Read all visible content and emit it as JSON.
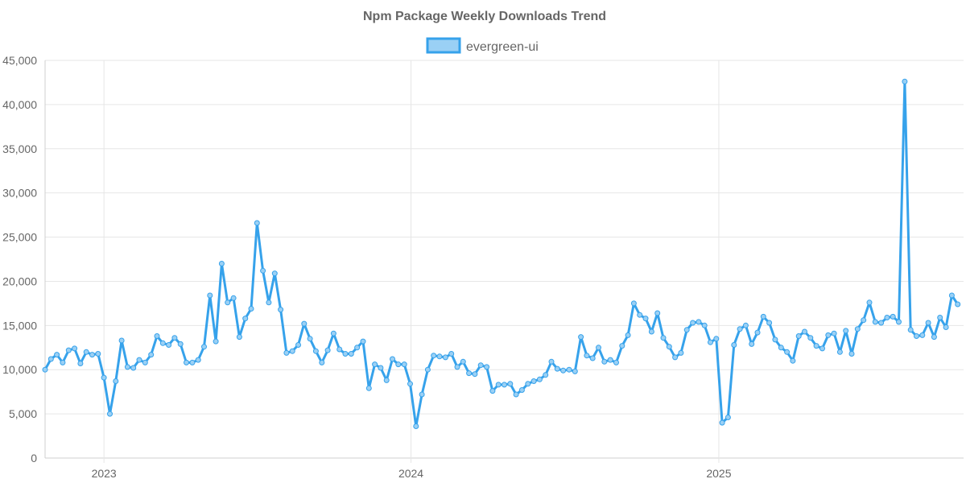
{
  "colors": {
    "line": "#36a2eb",
    "fill": "#9ad0f5",
    "grid": "#e6e6e6",
    "text": "#666666"
  },
  "chart_data": {
    "type": "line",
    "title": "Npm Package Weekly Downloads Trend",
    "xlabel": "",
    "ylabel": "",
    "ylim": [
      0,
      45000
    ],
    "y_ticks": [
      0,
      5000,
      10000,
      15000,
      20000,
      25000,
      30000,
      35000,
      40000,
      45000
    ],
    "y_tick_labels": [
      "0",
      "5,000",
      "10,000",
      "15,000",
      "20,000",
      "25,000",
      "30,000",
      "35,000",
      "40,000",
      "45,000"
    ],
    "x_range": [
      "2022-10-23",
      "2025-10-19"
    ],
    "x_ticks": [
      "2023-01-01",
      "2024-01-01",
      "2025-01-01"
    ],
    "x_tick_labels": [
      "2023",
      "2024",
      "2025"
    ],
    "grid": true,
    "legend": "top-center",
    "series": [
      {
        "name": "evergreen-ui",
        "start": "2022-10-23",
        "interval_days": 7,
        "values": [
          10000,
          11200,
          11700,
          10800,
          12200,
          12400,
          10700,
          12000,
          11700,
          11800,
          9100,
          5000,
          8700,
          13300,
          10300,
          10200,
          11100,
          10800,
          11700,
          13800,
          13000,
          12800,
          13600,
          12900,
          10800,
          10800,
          11100,
          12600,
          18400,
          13200,
          22000,
          17600,
          18100,
          13700,
          15800,
          16900,
          26600,
          21200,
          17600,
          20900,
          16800,
          11900,
          12100,
          12800,
          15200,
          13500,
          12100,
          10800,
          12200,
          14100,
          12300,
          11800,
          11800,
          12500,
          13200,
          7900,
          10600,
          10200,
          8800,
          11200,
          10600,
          10600,
          8400,
          3600,
          7200,
          10000,
          11600,
          11500,
          11400,
          11800,
          10300,
          10900,
          9600,
          9500,
          10500,
          10300,
          7600,
          8300,
          8300,
          8400,
          7200,
          7700,
          8400,
          8700,
          8900,
          9400,
          10900,
          10100,
          9900,
          10000,
          9800,
          13700,
          11600,
          11300,
          12500,
          10900,
          11100,
          10800,
          12700,
          13900,
          17500,
          16200,
          15800,
          14300,
          16400,
          13600,
          12600,
          11400,
          11900,
          14500,
          15300,
          15400,
          15000,
          13100,
          13500,
          4000,
          4600,
          12800,
          14600,
          15000,
          12900,
          14200,
          16000,
          15300,
          13400,
          12500,
          12000,
          11000,
          13800,
          14300,
          13600,
          12700,
          12400,
          13900,
          14100,
          12000,
          14400,
          11800,
          14600,
          15600,
          17600,
          15400,
          15300,
          15900,
          16000,
          15400,
          42600,
          14500,
          13800,
          13900,
          15300,
          13700,
          15900,
          14800,
          18400,
          17400
        ]
      }
    ]
  }
}
